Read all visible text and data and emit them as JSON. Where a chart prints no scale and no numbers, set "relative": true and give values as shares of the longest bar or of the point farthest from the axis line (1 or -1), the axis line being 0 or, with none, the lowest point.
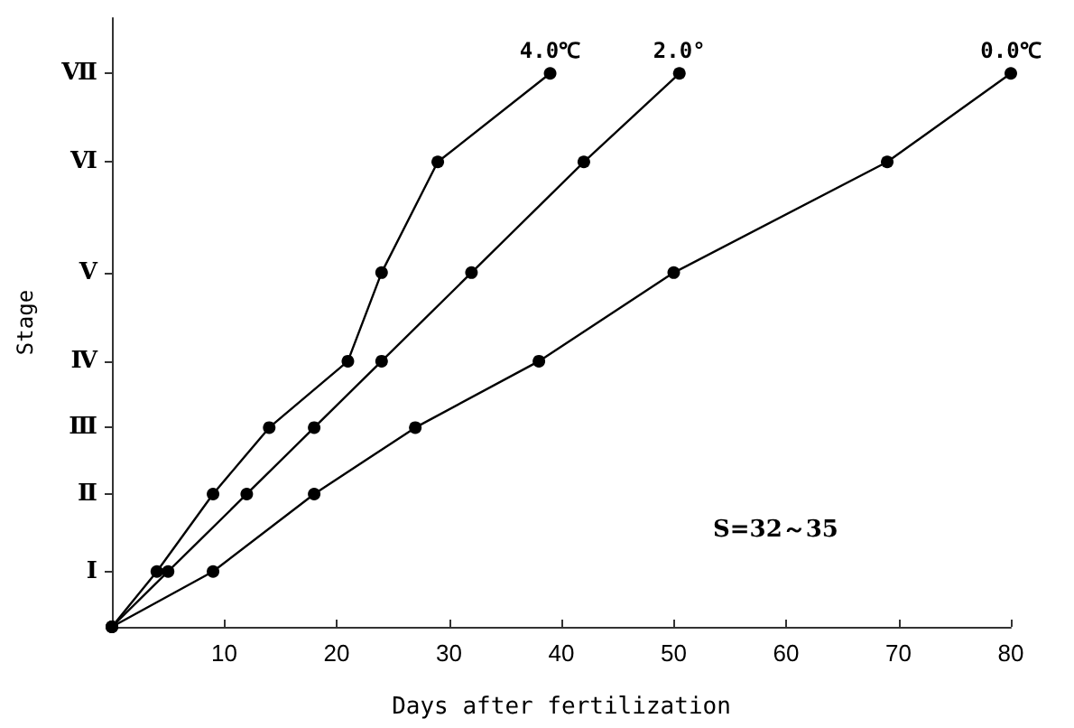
{
  "chart_data": {
    "type": "line",
    "xlabel": "Days after fertilization",
    "ylabel": "Stage",
    "xlim": [
      0,
      80
    ],
    "xticks": [
      10,
      20,
      30,
      40,
      50,
      60,
      70,
      80
    ],
    "relative": true,
    "grid": false,
    "legend": false,
    "marker": "circle",
    "line_style": "solid",
    "annotations": [
      "Ⅰ",
      "Ⅱ",
      "Ⅲ",
      "Ⅳ",
      "Ⅴ",
      "Ⅵ",
      "Ⅶ",
      "S=32～35"
    ],
    "series": [
      {
        "name": "4.0℃",
        "color": "#000000",
        "x": [
          0,
          4,
          9,
          14,
          21,
          24,
          29,
          39
        ],
        "values": [
          0,
          0.1,
          0.24,
          0.36,
          0.48,
          0.64,
          0.84,
          1
        ]
      },
      {
        "name": "2.0°",
        "color": "#000000",
        "x": [
          0,
          5,
          12,
          18,
          24,
          32,
          42,
          50.5
        ],
        "values": [
          0,
          0.1,
          0.24,
          0.36,
          0.48,
          0.64,
          0.84,
          1
        ]
      },
      {
        "name": "0.0℃",
        "color": "#000000",
        "x": [
          0,
          9,
          18,
          27,
          38,
          50,
          69,
          80
        ],
        "values": [
          0,
          0.1,
          0.24,
          0.36,
          0.48,
          0.64,
          0.84,
          1
        ]
      }
    ]
  }
}
